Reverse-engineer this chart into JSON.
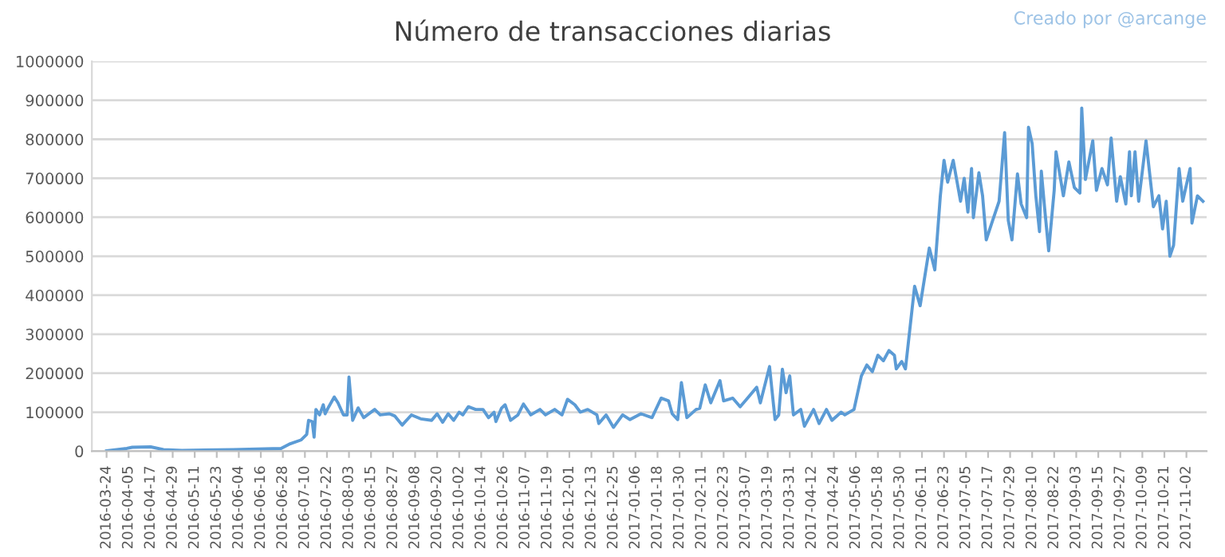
{
  "chart_data": {
    "type": "line",
    "title": "Número de transacciones diarias",
    "annotations": [
      "Creado por @arcange"
    ],
    "x": [
      "2016-03-24",
      "2016-04-04",
      "2016-04-07",
      "2016-04-17",
      "2016-04-24",
      "2016-05-04",
      "2016-06-01",
      "2016-06-27",
      "2016-07-02",
      "2016-07-08",
      "2016-07-11",
      "2016-07-12",
      "2016-07-14",
      "2016-07-15",
      "2016-07-16",
      "2016-07-18",
      "2016-07-20",
      "2016-07-21",
      "2016-07-23",
      "2016-07-26",
      "2016-07-28",
      "2016-07-31",
      "2016-08-02",
      "2016-08-03",
      "2016-08-05",
      "2016-08-08",
      "2016-08-11",
      "2016-08-17",
      "2016-08-20",
      "2016-08-25",
      "2016-08-28",
      "2016-09-01",
      "2016-09-06",
      "2016-09-11",
      "2016-09-17",
      "2016-09-20",
      "2016-09-23",
      "2016-09-26",
      "2016-09-29",
      "2016-10-02",
      "2016-10-04",
      "2016-10-07",
      "2016-10-11",
      "2016-10-15",
      "2016-10-18",
      "2016-10-21",
      "2016-10-22",
      "2016-10-25",
      "2016-10-27",
      "2016-10-30",
      "2016-11-03",
      "2016-11-06",
      "2016-11-10",
      "2016-11-15",
      "2016-11-18",
      "2016-11-23",
      "2016-11-27",
      "2016-11-30",
      "2016-12-04",
      "2016-12-07",
      "2016-12-11",
      "2016-12-16",
      "2016-12-17",
      "2016-12-21",
      "2016-12-25",
      "2016-12-30",
      "2017-01-03",
      "2017-01-09",
      "2017-01-15",
      "2017-01-20",
      "2017-01-24",
      "2017-01-26",
      "2017-01-29",
      "2017-01-31",
      "2017-02-03",
      "2017-02-08",
      "2017-02-10",
      "2017-02-13",
      "2017-02-16",
      "2017-02-21",
      "2017-02-23",
      "2017-02-28",
      "2017-03-04",
      "2017-03-08",
      "2017-03-13",
      "2017-03-15",
      "2017-03-20",
      "2017-03-23",
      "2017-03-25",
      "2017-03-27",
      "2017-03-29",
      "2017-03-31",
      "2017-04-02",
      "2017-04-06",
      "2017-04-08",
      "2017-04-13",
      "2017-04-16",
      "2017-04-20",
      "2017-04-23",
      "2017-04-28",
      "2017-04-30",
      "2017-05-05",
      "2017-05-09",
      "2017-05-12",
      "2017-05-15",
      "2017-05-18",
      "2017-05-21",
      "2017-05-24",
      "2017-05-27",
      "2017-05-28",
      "2017-05-31",
      "2017-06-02",
      "2017-06-07",
      "2017-06-10",
      "2017-06-15",
      "2017-06-18",
      "2017-06-21",
      "2017-06-23",
      "2017-06-25",
      "2017-06-28",
      "2017-07-02",
      "2017-07-04",
      "2017-07-06",
      "2017-07-08",
      "2017-07-09",
      "2017-07-12",
      "2017-07-14",
      "2017-07-16",
      "2017-07-19",
      "2017-07-23",
      "2017-07-26",
      "2017-07-28",
      "2017-07-30",
      "2017-08-02",
      "2017-08-04",
      "2017-08-07",
      "2017-08-08",
      "2017-08-10",
      "2017-08-12",
      "2017-08-14",
      "2017-08-15",
      "2017-08-17",
      "2017-08-19",
      "2017-08-22",
      "2017-08-23",
      "2017-08-27",
      "2017-08-30",
      "2017-09-02",
      "2017-09-05",
      "2017-09-06",
      "2017-09-08",
      "2017-09-12",
      "2017-09-14",
      "2017-09-17",
      "2017-09-20",
      "2017-09-22",
      "2017-09-25",
      "2017-09-27",
      "2017-09-30",
      "2017-10-02",
      "2017-10-03",
      "2017-10-05",
      "2017-10-07",
      "2017-10-09",
      "2017-10-11",
      "2017-10-15",
      "2017-10-18",
      "2017-10-20",
      "2017-10-22",
      "2017-10-24",
      "2017-10-26",
      "2017-10-29",
      "2017-10-31",
      "2017-11-04",
      "2017-11-05",
      "2017-11-08",
      "2017-11-11"
    ],
    "series": [
      {
        "color": "#5b9bd5",
        "values": [
          1000,
          7000,
          10000,
          11000,
          4000,
          2000,
          4000,
          7000,
          19000,
          29000,
          43000,
          79000,
          76000,
          36000,
          107000,
          93000,
          119000,
          96000,
          114000,
          139000,
          124000,
          93000,
          93000,
          190000,
          79000,
          111000,
          86000,
          107000,
          93000,
          96000,
          90000,
          67000,
          93000,
          83000,
          79000,
          96000,
          74000,
          96000,
          79000,
          100000,
          93000,
          114000,
          107000,
          107000,
          86000,
          100000,
          76000,
          110000,
          119000,
          79000,
          93000,
          121000,
          93000,
          107000,
          93000,
          107000,
          93000,
          133000,
          119000,
          100000,
          107000,
          93000,
          71000,
          93000,
          61000,
          93000,
          81000,
          96000,
          86000,
          136000,
          129000,
          96000,
          81000,
          176000,
          86000,
          107000,
          110000,
          170000,
          124000,
          181000,
          129000,
          136000,
          114000,
          136000,
          164000,
          124000,
          217000,
          81000,
          93000,
          210000,
          150000,
          193000,
          93000,
          107000,
          64000,
          107000,
          71000,
          107000,
          79000,
          100000,
          93000,
          107000,
          193000,
          221000,
          204000,
          246000,
          232000,
          258000,
          246000,
          211000,
          230000,
          211000,
          423000,
          373000,
          521000,
          465000,
          655000,
          746000,
          690000,
          746000,
          641000,
          700000,
          613000,
          725000,
          599000,
          714000,
          655000,
          542000,
          585000,
          641000,
          817000,
          592000,
          542000,
          711000,
          634000,
          599000,
          831000,
          789000,
          655000,
          563000,
          718000,
          613000,
          514000,
          669000,
          768000,
          655000,
          742000,
          676000,
          662000,
          880000,
          697000,
          796000,
          669000,
          725000,
          683000,
          803000,
          641000,
          704000,
          634000,
          768000,
          655000,
          768000,
          641000,
          718000,
          796000,
          627000,
          655000,
          570000,
          641000,
          500000,
          528000,
          725000,
          641000,
          725000,
          585000,
          655000,
          641000
        ]
      }
    ],
    "xlim": [
      "2016-03-16",
      "2017-11-13"
    ],
    "xticks": [
      "2016-03-24",
      "2016-04-05",
      "2016-04-17",
      "2016-04-29",
      "2016-05-11",
      "2016-05-23",
      "2016-06-04",
      "2016-06-16",
      "2016-06-28",
      "2016-07-10",
      "2016-07-22",
      "2016-08-03",
      "2016-08-15",
      "2016-08-27",
      "2016-09-08",
      "2016-09-20",
      "2016-10-02",
      "2016-10-14",
      "2016-10-26",
      "2016-11-07",
      "2016-11-19",
      "2016-12-01",
      "2016-12-13",
      "2016-12-25",
      "2017-01-06",
      "2017-01-18",
      "2017-01-30",
      "2017-02-11",
      "2017-02-23",
      "2017-03-07",
      "2017-03-19",
      "2017-03-31",
      "2017-04-12",
      "2017-04-24",
      "2017-05-06",
      "2017-05-18",
      "2017-05-30",
      "2017-06-11",
      "2017-06-23",
      "2017-07-05",
      "2017-07-17",
      "2017-07-29",
      "2017-08-10",
      "2017-08-22",
      "2017-09-03",
      "2017-09-15",
      "2017-09-27",
      "2017-10-09",
      "2017-10-21",
      "2017-11-02"
    ],
    "ylim": [
      0,
      1000000
    ],
    "yticks": [
      0,
      100000,
      200000,
      300000,
      400000,
      500000,
      600000,
      700000,
      800000,
      900000,
      1000000
    ],
    "grid": "y",
    "marker": "none",
    "line_style": "solid"
  }
}
